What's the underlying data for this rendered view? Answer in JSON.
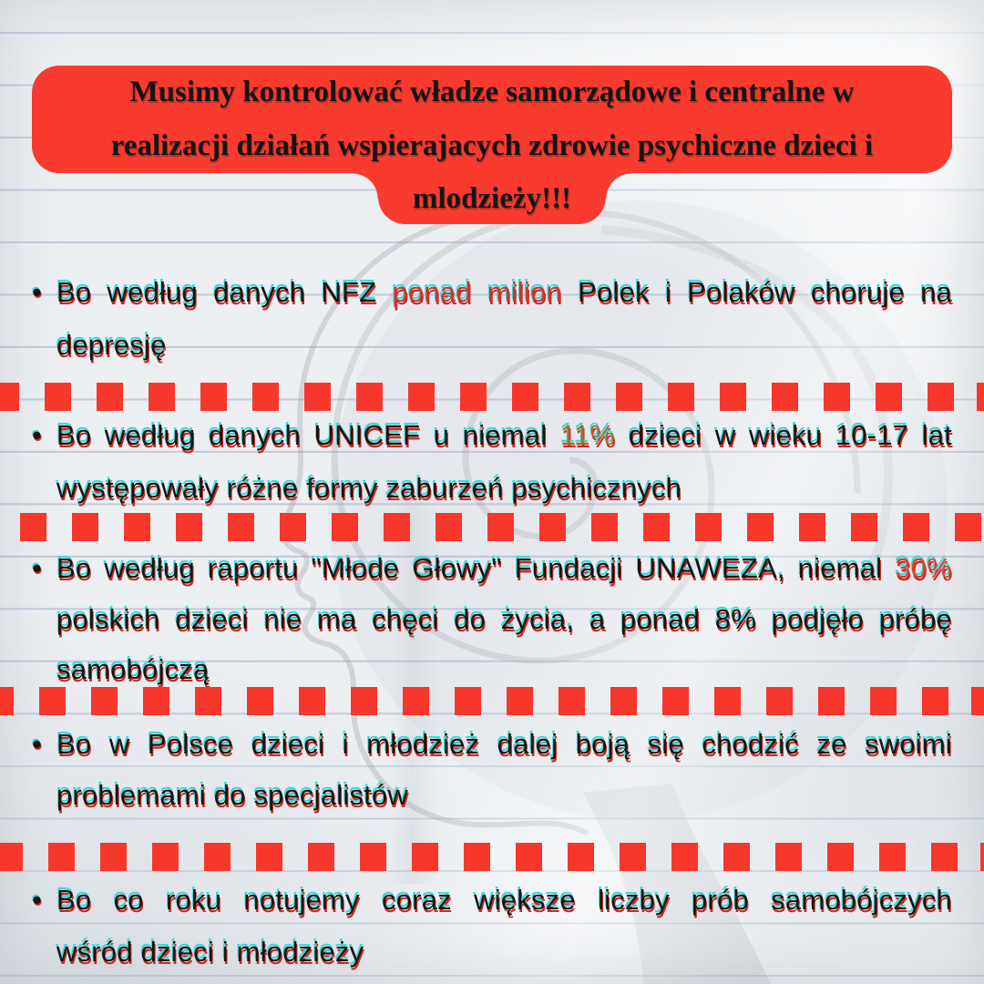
{
  "colors": {
    "paper": "#edf0f3",
    "ruled_line": "#a3b5cf",
    "banner_red": "#f93a2f",
    "separator_red": "#f8372c",
    "text_black": "#141414",
    "accent_red": "#c8382e",
    "accent_orange": "#a9692a",
    "accent_red_bright": "#e23b31",
    "aberration_cyan": "#3fd8da",
    "aberration_red": "#d2261c"
  },
  "bullet_marker": "•",
  "banner": {
    "lines": [
      "Musimy kontrolować władze samorządowe i centralne w",
      "realizacji działań wspierajacych zdrowie psychiczne dzieci i",
      "mlodzieży!!!"
    ]
  },
  "bullets": [
    {
      "lines": [
        {
          "justify": true,
          "segments": [
            {
              "t": "Bo według danych NFZ ",
              "c": "k"
            },
            {
              "t": "ponad milion",
              "c": "red"
            },
            {
              "t": " Polek i Polaków choruje na",
              "c": "k"
            }
          ]
        },
        {
          "justify": false,
          "segments": [
            {
              "t": "depresję",
              "c": "k"
            }
          ]
        }
      ]
    },
    {
      "lines": [
        {
          "justify": true,
          "segments": [
            {
              "t": "Bo według danych UNICEF u niemal ",
              "c": "k"
            },
            {
              "t": "11%",
              "c": "orange"
            },
            {
              "t": " dzieci w wieku 10-17 lat",
              "c": "k"
            }
          ]
        },
        {
          "justify": false,
          "segments": [
            {
              "t": "występowały różne formy zaburzeń psychicznych",
              "c": "k"
            }
          ]
        }
      ]
    },
    {
      "lines": [
        {
          "justify": true,
          "segments": [
            {
              "t": "Bo według raportu \"Młode Głowy\" Fundacji UNAWEZA, niemal ",
              "c": "k"
            },
            {
              "t": "30%",
              "c": "red2"
            }
          ]
        },
        {
          "justify": true,
          "segments": [
            {
              "t": "polskich dzieci nie ma chęci do życia, a ponad 8% podjęło próbę",
              "c": "k"
            }
          ]
        },
        {
          "justify": false,
          "segments": [
            {
              "t": "samobójczą",
              "c": "k"
            }
          ]
        }
      ]
    },
    {
      "lines": [
        {
          "justify": true,
          "segments": [
            {
              "t": "Bo w Polsce dzieci i młodzież dalej boją się chodzić ze swoimi",
              "c": "k"
            }
          ]
        },
        {
          "justify": false,
          "segments": [
            {
              "t": "problemami do specjalistów",
              "c": "k"
            }
          ]
        }
      ]
    },
    {
      "lines": [
        {
          "justify": true,
          "segments": [
            {
              "t": "Bo co roku notujemy coraz większe liczby prób samobójczych",
              "c": "k"
            }
          ]
        },
        {
          "justify": false,
          "segments": [
            {
              "t": "wśród dzieci i młodzieży",
              "c": "k"
            }
          ]
        }
      ]
    }
  ],
  "separators": {
    "count": 4
  }
}
